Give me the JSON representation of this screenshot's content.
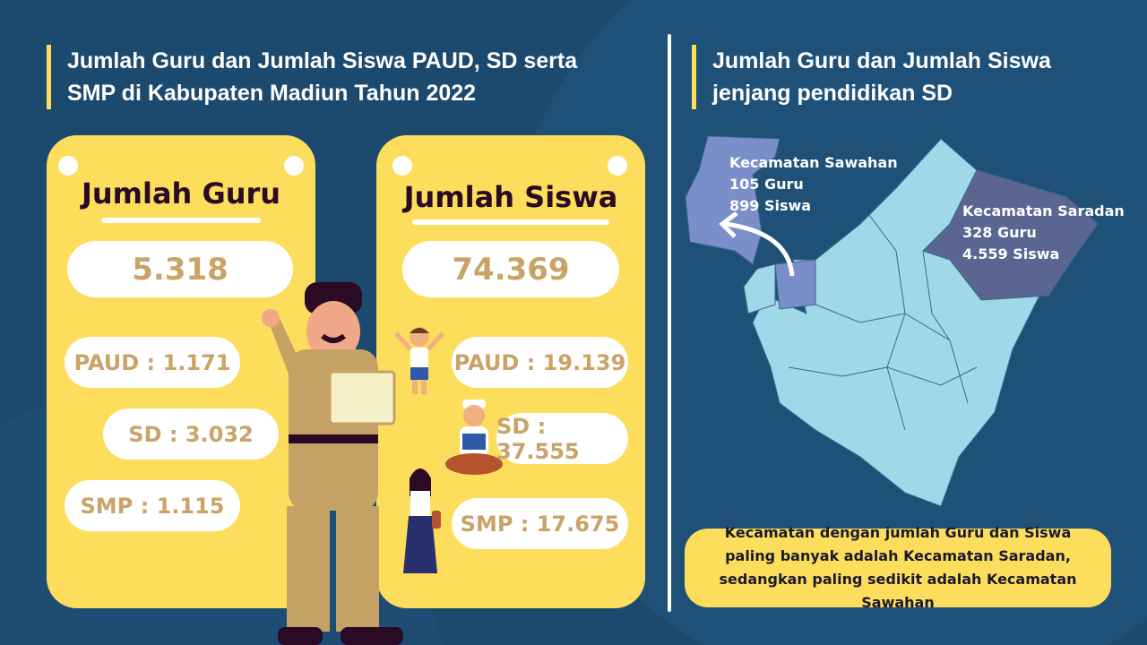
{
  "colors": {
    "background": "#1c4a6e",
    "card": "#fddd5c",
    "value_text": "#c9a367",
    "heading_text": "#2a0a24",
    "map_base": "#a0d8ea",
    "map_sawahan": "#7a8fca",
    "map_saradan": "#5a6591"
  },
  "left": {
    "title_line1": "Jumlah Guru dan Jumlah Siswa PAUD, SD serta",
    "title_line2": "SMP di Kabupaten Madiun Tahun 2022"
  },
  "guru": {
    "heading": "Jumlah Guru",
    "total": "5.318",
    "paud": "PAUD : 1.171",
    "sd": "SD : 3.032",
    "smp": "SMP : 1.115"
  },
  "siswa": {
    "heading": "Jumlah Siswa",
    "total": "74.369",
    "paud": "PAUD : 19.139",
    "sd": "SD : 37.555",
    "smp": "SMP : 17.675"
  },
  "right": {
    "title_line1": "Jumlah Guru dan Jumlah Siswa",
    "title_line2": "jenjang pendidikan SD"
  },
  "map": {
    "sawahan": {
      "name": "Kecamatan Sawahan",
      "guru": "105 Guru",
      "siswa": "899 Siswa"
    },
    "saradan": {
      "name": "Kecamatan Saradan",
      "guru": "328 Guru",
      "siswa": "4.559 Siswa"
    }
  },
  "note": "Kecamatan dengan jumlah Guru dan Siswa paling banyak adalah Kecamatan Saradan, sedangkan paling sedikit adalah Kecamatan Sawahan"
}
